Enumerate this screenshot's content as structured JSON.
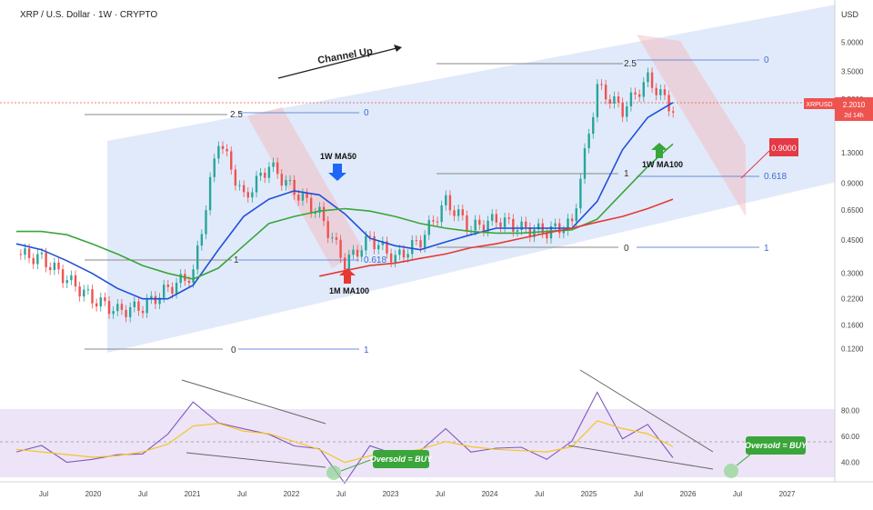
{
  "header": {
    "title": "XRP / U.S. Dollar · 1W · CRYPTO",
    "currency": "USD"
  },
  "price_axis": {
    "ticks": [
      "5.0000",
      "3.5000",
      "2.5000",
      "1.3000",
      "0.9000",
      "0.6500",
      "0.4500",
      "0.3000",
      "0.2200",
      "0.1600",
      "0.1200"
    ],
    "current_symbol": "XRPUSD",
    "current_price": "2.2010",
    "countdown": "2d 14h",
    "target_label": "0.9000"
  },
  "rsi_axis": {
    "ticks": [
      "80.00",
      "60.00",
      "40.00"
    ]
  },
  "time_axis": {
    "ticks": [
      "Jul",
      "2020",
      "Jul",
      "2021",
      "Jul",
      "2022",
      "Jul",
      "2023",
      "Jul",
      "2024",
      "Jul",
      "2025",
      "Jul",
      "2026",
      "Jul",
      "2027"
    ]
  },
  "annotations": {
    "channel": "Channel Up",
    "ma50": "1W MA50",
    "ma100_weekly": "1W MA100",
    "ma100_monthly": "1M MA100",
    "oversold_1": "Oversold = BUY",
    "oversold_2": "Oversold = BUY"
  },
  "fib_labels": {
    "set1": [
      "0",
      "1",
      "2.5",
      "0"
    ],
    "set2": [
      "1",
      "0.618",
      "2.5",
      "0"
    ],
    "set3": [
      "0",
      "1",
      "1",
      "2.5",
      "0",
      "0.618"
    ]
  },
  "colors": {
    "channel": "#c9d9f5",
    "up": "#26a69a",
    "down": "#ef5350",
    "ma50": "#1e4fd8",
    "ma100w": "#3aa53a",
    "ma100m": "#e53935",
    "rsi": "#7e57c2",
    "rsi_ma": "#f3c623",
    "target": "#e53945"
  },
  "chart_data": [
    {
      "type": "line",
      "title": "XRP / U.S. Dollar · 1W · CRYPTO",
      "y_scale": "log",
      "ylim": [
        0.1,
        6.0
      ],
      "x": [
        "2019-04",
        "2019-07",
        "2019-10",
        "2020-01",
        "2020-04",
        "2020-07",
        "2020-10",
        "2021-01",
        "2021-04",
        "2021-07",
        "2021-10",
        "2022-01",
        "2022-04",
        "2022-07",
        "2022-10",
        "2023-01",
        "2023-04",
        "2023-07",
        "2023-10",
        "2024-01",
        "2024-04",
        "2024-07",
        "2024-10",
        "2025-01",
        "2025-04",
        "2025-07",
        "2025-10"
      ],
      "series": [
        {
          "name": "XRPUSD",
          "values": [
            0.38,
            0.36,
            0.28,
            0.22,
            0.19,
            0.2,
            0.25,
            0.3,
            1.55,
            0.75,
            1.12,
            0.82,
            0.62,
            0.34,
            0.46,
            0.36,
            0.45,
            0.72,
            0.52,
            0.58,
            0.52,
            0.5,
            0.55,
            2.9,
            2.2,
            3.2,
            2.2
          ]
        },
        {
          "name": "1W MA50",
          "values": [
            0.43,
            0.4,
            0.35,
            0.3,
            0.25,
            0.22,
            0.22,
            0.26,
            0.4,
            0.6,
            0.74,
            0.82,
            0.78,
            0.62,
            0.46,
            0.42,
            0.4,
            0.44,
            0.48,
            0.52,
            0.52,
            0.52,
            0.52,
            0.72,
            1.35,
            2.0,
            2.4
          ]
        },
        {
          "name": "1W MA100",
          "values": [
            0.5,
            0.5,
            0.48,
            0.43,
            0.38,
            0.33,
            0.3,
            0.28,
            0.32,
            0.42,
            0.55,
            0.6,
            0.64,
            0.66,
            0.64,
            0.6,
            0.55,
            0.52,
            0.5,
            0.49,
            0.49,
            0.5,
            0.51,
            0.58,
            0.8,
            1.1,
            1.45
          ]
        },
        {
          "name": "1M MA100",
          "values": [
            null,
            null,
            null,
            null,
            null,
            null,
            null,
            null,
            null,
            null,
            null,
            null,
            0.29,
            0.31,
            0.33,
            0.34,
            0.36,
            0.38,
            0.41,
            0.43,
            0.46,
            0.49,
            0.52,
            0.56,
            0.6,
            0.66,
            0.74
          ]
        }
      ]
    },
    {
      "type": "line",
      "title": "RSI",
      "ylim": [
        25,
        95
      ],
      "x": [
        "2019-04",
        "2019-07",
        "2019-10",
        "2020-01",
        "2020-04",
        "2020-07",
        "2020-10",
        "2021-01",
        "2021-04",
        "2021-07",
        "2021-10",
        "2022-01",
        "2022-04",
        "2022-07",
        "2022-10",
        "2023-01",
        "2023-04",
        "2023-07",
        "2023-10",
        "2024-01",
        "2024-04",
        "2024-07",
        "2024-10",
        "2025-01",
        "2025-04",
        "2025-07",
        "2025-10"
      ],
      "series": [
        {
          "name": "RSI",
          "values": [
            48,
            50,
            44,
            40,
            45,
            50,
            58,
            88,
            72,
            62,
            65,
            52,
            48,
            28,
            50,
            46,
            52,
            62,
            50,
            52,
            48,
            46,
            55,
            92,
            62,
            66,
            44
          ]
        },
        {
          "name": "RSI MA",
          "values": [
            50,
            48,
            46,
            44,
            45,
            48,
            54,
            68,
            70,
            64,
            62,
            56,
            50,
            40,
            45,
            47,
            50,
            56,
            52,
            50,
            49,
            48,
            52,
            72,
            66,
            62,
            52
          ]
        }
      ]
    }
  ]
}
